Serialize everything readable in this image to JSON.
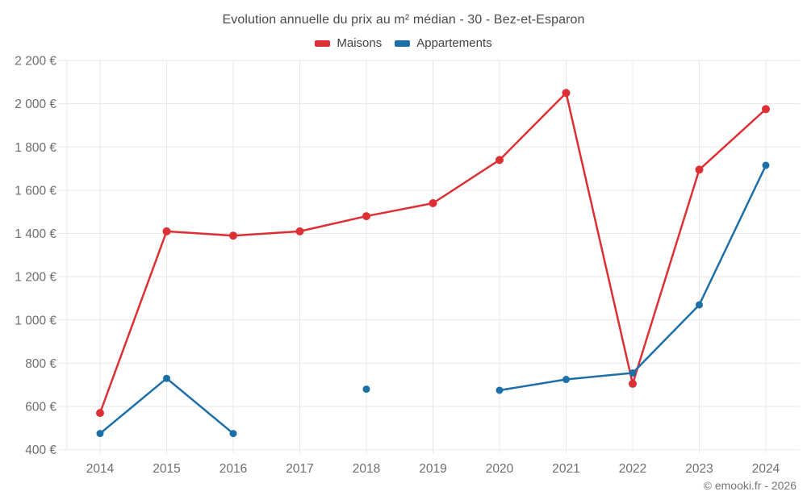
{
  "chart": {
    "copyright": "© emooki.fr - 2026"
  },
  "chart_data": {
    "type": "line",
    "title": "Evolution annuelle du prix au m² médian - 30 - Bez-et-Esparon",
    "xlabel": "",
    "ylabel": "",
    "categories": [
      "2014",
      "2015",
      "2016",
      "2017",
      "2018",
      "2019",
      "2020",
      "2021",
      "2022",
      "2023",
      "2024"
    ],
    "series": [
      {
        "name": "Maisons",
        "color": "#dc3034",
        "values": [
          570,
          1410,
          1390,
          1410,
          1480,
          1540,
          1740,
          2050,
          705,
          1695,
          1975
        ]
      },
      {
        "name": "Appartements",
        "color": "#1d6fa8",
        "values": [
          475,
          730,
          475,
          null,
          680,
          null,
          675,
          725,
          755,
          1070,
          1715
        ]
      }
    ],
    "ylim": [
      400,
      2200
    ],
    "y_tick_step": 200,
    "y_tick_labels": [
      "400 €",
      "600 €",
      "800 €",
      "1 000 €",
      "1 200 €",
      "1 400 €",
      "1 600 €",
      "1 800 €",
      "2 000 €",
      "2 200 €"
    ],
    "currency_suffix": "€",
    "grid": true,
    "legend_position": "top"
  }
}
